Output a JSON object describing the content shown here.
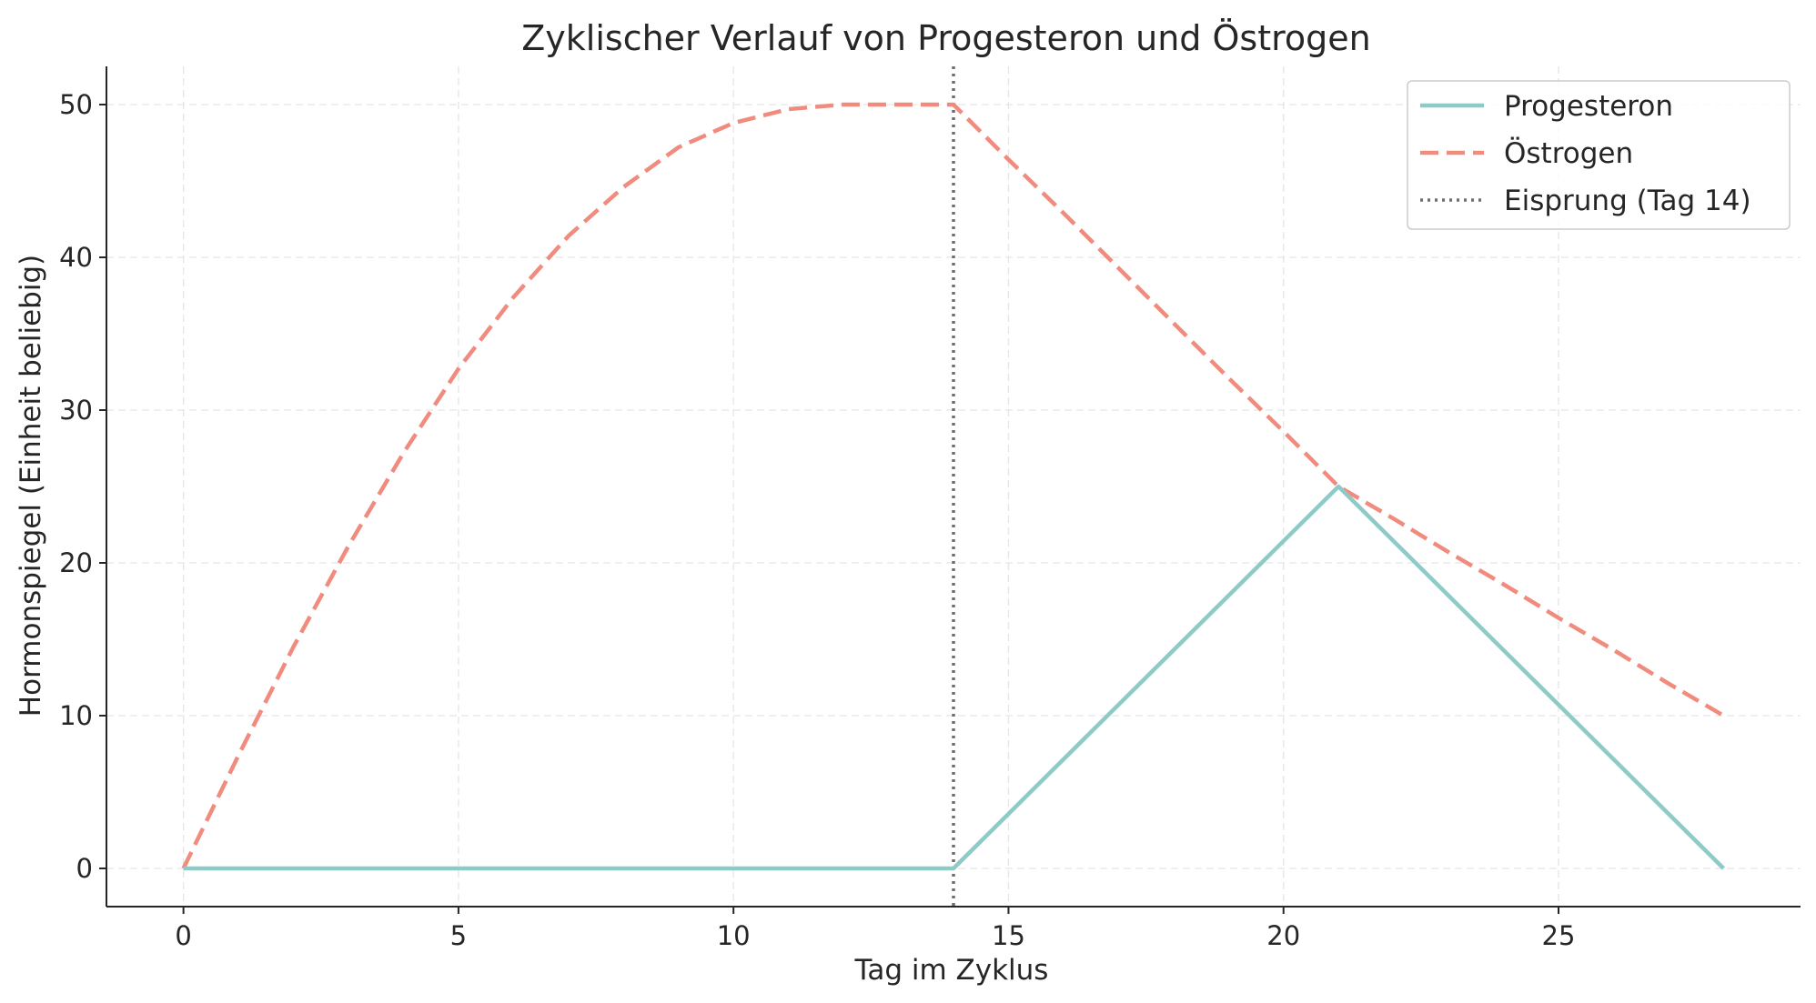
{
  "chart_data": {
    "type": "line",
    "title": "Zyklischer Verlauf von Progesteron und Östrogen",
    "xlabel": "Tag im Zyklus",
    "ylabel": "Hormonspiegel (Einheit beliebig)",
    "xlim": [
      -1.4,
      29.4
    ],
    "ylim": [
      -2.5,
      52.5
    ],
    "xticks": [
      0,
      5,
      10,
      15,
      20,
      25
    ],
    "yticks": [
      0,
      10,
      20,
      30,
      40,
      50
    ],
    "grid": true,
    "legend_position": "top-right",
    "series": [
      {
        "name": "Progesteron",
        "style": "solid",
        "color": "#8ecac7",
        "x": [
          0,
          14,
          21,
          28
        ],
        "y": [
          0,
          0,
          25,
          0
        ]
      },
      {
        "name": "Östrogen",
        "style": "dashed",
        "color": "#f08b7e",
        "x": [
          0,
          1,
          2,
          3,
          4,
          5,
          6,
          7,
          8,
          9,
          10,
          11,
          12,
          13,
          14,
          15,
          16,
          17,
          18,
          19,
          20,
          21,
          22,
          23,
          24,
          25,
          26,
          27,
          28
        ],
        "y": [
          0,
          7.4,
          14.5,
          21.1,
          27.2,
          32.7,
          37.4,
          41.4,
          44.6,
          47.2,
          48.8,
          49.7,
          50.0,
          50.0,
          50.0,
          46.4,
          42.9,
          39.3,
          35.7,
          32.1,
          28.6,
          25.0,
          22.9,
          20.7,
          18.6,
          16.4,
          14.3,
          12.1,
          10.0
        ]
      }
    ],
    "vline": {
      "name": "Eisprung (Tag 14)",
      "x": 14,
      "style": "dotted",
      "color": "#6e6e6e"
    }
  }
}
